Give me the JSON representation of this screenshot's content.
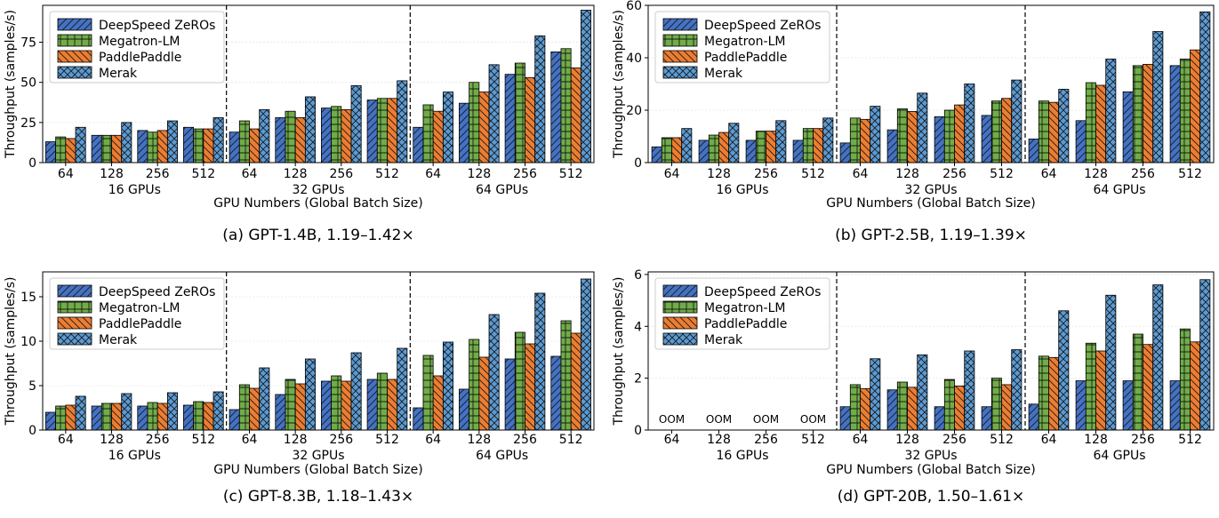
{
  "legend_entries": [
    "DeepSpeed ZeROs",
    "Megatron-LM",
    "PaddlePaddle",
    "Merak"
  ],
  "chart_data": [
    {
      "type": "bar",
      "caption": "(a) GPT-1.4B, 1.19–1.42×",
      "ylabel": "Throughput (samples/s)",
      "xlabel": "GPU Numbers (Global Batch Size)",
      "categories": [
        "64",
        "128",
        "256",
        "512",
        "64",
        "128",
        "256",
        "512",
        "64",
        "128",
        "256",
        "512"
      ],
      "groups": [
        "16 GPUs",
        "32 GPUs",
        "64 GPUs"
      ],
      "ylim": [
        0,
        98
      ],
      "yticks": [
        0,
        25,
        50,
        75
      ],
      "series": [
        {
          "name": "DeepSpeed ZeROs",
          "values": [
            13,
            17,
            20,
            22,
            19,
            28,
            34,
            39,
            22,
            37,
            55,
            69
          ]
        },
        {
          "name": "Megatron-LM",
          "values": [
            16,
            17,
            19,
            21,
            26,
            32,
            35,
            40,
            36,
            50,
            62,
            71
          ]
        },
        {
          "name": "PaddlePaddle",
          "values": [
            15,
            17,
            20,
            21,
            21,
            28,
            33,
            40,
            32,
            44,
            53,
            59
          ]
        },
        {
          "name": "Merak",
          "values": [
            22,
            25,
            26,
            28,
            33,
            41,
            48,
            51,
            44,
            61,
            79,
            95
          ]
        }
      ],
      "annotations": []
    },
    {
      "type": "bar",
      "caption": "(b) GPT-2.5B, 1.19–1.39×",
      "ylabel": "Throughput (samples/s)",
      "xlabel": "GPU Numbers (Global Batch Size)",
      "categories": [
        "64",
        "128",
        "256",
        "512",
        "64",
        "128",
        "256",
        "512",
        "64",
        "128",
        "256",
        "512"
      ],
      "groups": [
        "16 GPUs",
        "32 GPUs",
        "64 GPUs"
      ],
      "ylim": [
        0,
        60
      ],
      "yticks": [
        0,
        20,
        40,
        60
      ],
      "series": [
        {
          "name": "DeepSpeed ZeROs",
          "values": [
            6,
            8.5,
            8.5,
            8.5,
            7.5,
            12.5,
            17.5,
            18,
            9,
            16,
            27,
            37
          ]
        },
        {
          "name": "Megatron-LM",
          "values": [
            9.5,
            10.5,
            12,
            13,
            17,
            20.5,
            20,
            23.5,
            23.5,
            30.5,
            37,
            39.5
          ]
        },
        {
          "name": "PaddlePaddle",
          "values": [
            9.5,
            11.5,
            12,
            13,
            16.5,
            19.5,
            22,
            24.5,
            23,
            29.5,
            37.5,
            43
          ]
        },
        {
          "name": "Merak",
          "values": [
            13,
            15,
            16,
            17,
            21.5,
            26.5,
            30,
            31.5,
            28,
            39.5,
            50,
            57.5
          ]
        }
      ],
      "annotations": []
    },
    {
      "type": "bar",
      "caption": "(c) GPT-8.3B, 1.18–1.43×",
      "ylabel": "Throughput (samples/s)",
      "xlabel": "GPU Numbers (Global Batch Size)",
      "categories": [
        "64",
        "128",
        "256",
        "512",
        "64",
        "128",
        "256",
        "512",
        "64",
        "128",
        "256",
        "512"
      ],
      "groups": [
        "16 GPUs",
        "32 GPUs",
        "64 GPUs"
      ],
      "ylim": [
        0,
        17.8
      ],
      "yticks": [
        0,
        5,
        10,
        15
      ],
      "series": [
        {
          "name": "DeepSpeed ZeROs",
          "values": [
            2.0,
            2.7,
            2.7,
            2.8,
            2.3,
            4.0,
            5.5,
            5.7,
            2.5,
            4.6,
            8.0,
            8.3
          ]
        },
        {
          "name": "Megatron-LM",
          "values": [
            2.7,
            3.0,
            3.1,
            3.2,
            5.1,
            5.7,
            6.1,
            6.4,
            8.4,
            10.2,
            11.0,
            12.3
          ]
        },
        {
          "name": "PaddlePaddle",
          "values": [
            2.8,
            3.0,
            3.0,
            3.1,
            4.7,
            5.2,
            5.5,
            5.7,
            6.1,
            8.2,
            9.7,
            10.9
          ]
        },
        {
          "name": "Merak",
          "values": [
            3.8,
            4.1,
            4.2,
            4.3,
            7.0,
            8.0,
            8.7,
            9.2,
            9.9,
            13.0,
            15.4,
            17.0
          ]
        }
      ],
      "annotations": []
    },
    {
      "type": "bar",
      "caption": "(d) GPT-20B, 1.50–1.61×",
      "ylabel": "Throughput (samples/s)",
      "xlabel": "GPU Numbers (Global Batch Size)",
      "categories": [
        "64",
        "128",
        "256",
        "512",
        "64",
        "128",
        "256",
        "512",
        "64",
        "128",
        "256",
        "512"
      ],
      "groups": [
        "16 GPUs",
        "32 GPUs",
        "64 GPUs"
      ],
      "ylim": [
        0,
        6.1
      ],
      "yticks": [
        0,
        2,
        4,
        6
      ],
      "series": [
        {
          "name": "DeepSpeed ZeROs",
          "values": [
            null,
            null,
            null,
            null,
            0.9,
            1.55,
            0.9,
            0.9,
            1.0,
            1.9,
            1.9,
            1.9
          ]
        },
        {
          "name": "Megatron-LM",
          "values": [
            null,
            null,
            null,
            null,
            1.75,
            1.85,
            1.95,
            2.0,
            2.85,
            3.35,
            3.7,
            3.9
          ]
        },
        {
          "name": "PaddlePaddle",
          "values": [
            null,
            null,
            null,
            null,
            1.6,
            1.65,
            1.7,
            1.75,
            2.8,
            3.05,
            3.3,
            3.4
          ]
        },
        {
          "name": "Merak",
          "values": [
            null,
            null,
            null,
            null,
            2.75,
            2.9,
            3.05,
            3.1,
            4.6,
            5.2,
            5.6,
            5.8
          ]
        }
      ],
      "annotations": [
        "OOM",
        "OOM",
        "OOM",
        "OOM"
      ]
    }
  ],
  "colors": {
    "DeepSpeed ZeROs": "#4472C4",
    "Megatron-LM": "#70AD47",
    "PaddlePaddle": "#ED7D31",
    "Merak": "#5B9BD5"
  },
  "hatches": {
    "DeepSpeed ZeROs": "diagonal",
    "Megatron-LM": "grid",
    "PaddlePaddle": "backslash",
    "Merak": "crosshatch"
  }
}
